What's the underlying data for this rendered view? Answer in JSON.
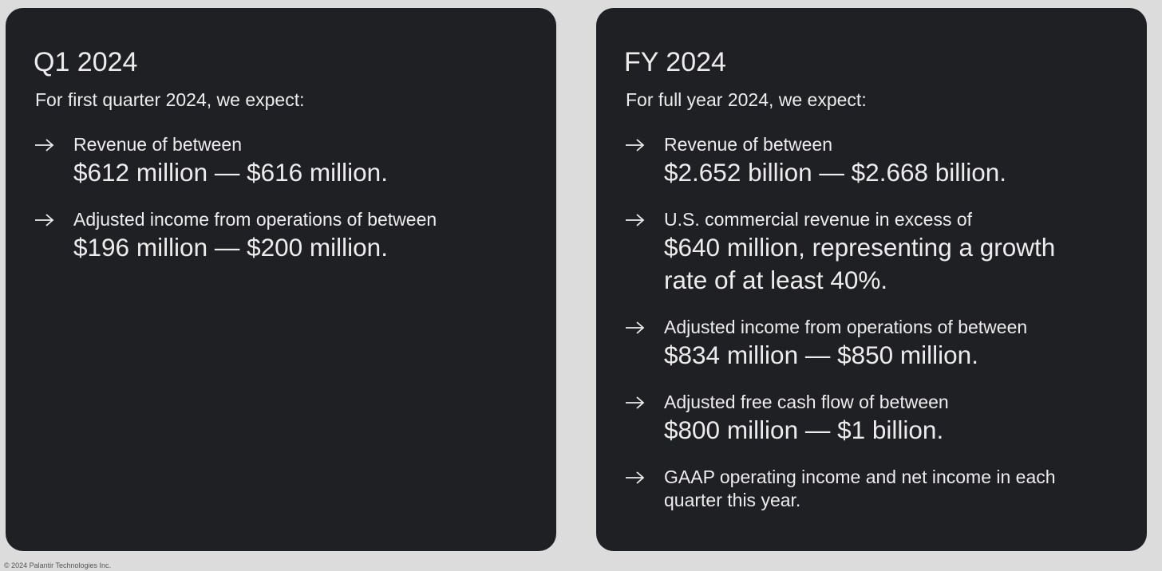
{
  "panels": [
    {
      "title": "Q1 2024",
      "intro": "For first quarter 2024, we expect:",
      "items": [
        {
          "label": [
            "Revenue of between"
          ],
          "value": [
            "$612 million — $616 million."
          ]
        },
        {
          "label": [
            "Adjusted income from operations of between"
          ],
          "value": [
            "$196 million — $200 million."
          ]
        }
      ]
    },
    {
      "title": "FY 2024",
      "intro": "For full year 2024, we expect:",
      "items": [
        {
          "label": [
            "Revenue of between"
          ],
          "value": [
            "$2.652 billion — $2.668 billion."
          ]
        },
        {
          "label": [
            "U.S. commercial revenue in excess of"
          ],
          "value": [
            "$640 million, representing a growth",
            "rate of at least 40%."
          ]
        },
        {
          "label": [
            "Adjusted income from operations of between"
          ],
          "value": [
            "$834 million — $850 million."
          ]
        },
        {
          "label": [
            "Adjusted free cash flow of between"
          ],
          "value": [
            "$800 million — $1 billion."
          ]
        },
        {
          "label": [
            "GAAP operating income and net income in each",
            "quarter this year."
          ],
          "value": []
        }
      ]
    }
  ],
  "footer": "© 2024 Palantir Technologies Inc."
}
